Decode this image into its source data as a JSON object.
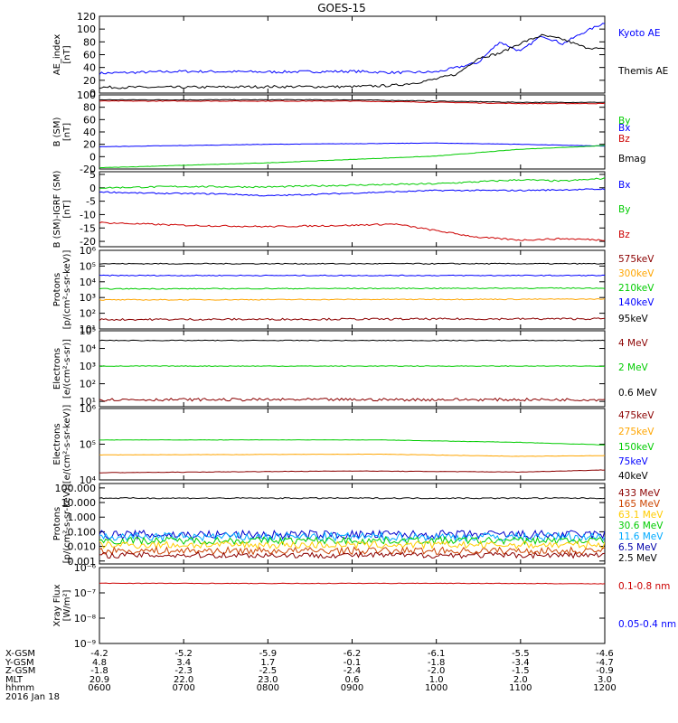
{
  "chart_data": {
    "type": "line",
    "title": "GOES-15",
    "x_ticks": [
      "0600",
      "0700",
      "0800",
      "0900",
      "1000",
      "1100",
      "1200"
    ],
    "panels": [
      {
        "name": "ae-index",
        "ylabel": [
          "AE_index",
          "[nT]"
        ],
        "scale": "linear",
        "ylim": [
          0,
          120
        ],
        "ticks": [
          "0",
          "20",
          "40",
          "60",
          "80",
          "100",
          "120"
        ],
        "tick_values": [
          0,
          20,
          40,
          60,
          80,
          100,
          120
        ],
        "legend": [
          {
            "label": "Kyoto AE",
            "color": "#0000ff"
          },
          {
            "label": "Themis AE",
            "color": "#000000"
          }
        ],
        "series": [
          {
            "name": "Kyoto AE",
            "color": "#0000ff",
            "x": [
              0,
              60,
              120,
              180,
              210,
              240,
              255,
              270,
              285,
              300,
              315,
              330,
              345,
              360
            ],
            "y": [
              31,
              34,
              33,
              34,
              32,
              33,
              40,
              48,
              80,
              65,
              90,
              77,
              95,
              110
            ],
            "noise": 2
          },
          {
            "name": "Themis AE",
            "color": "#000000",
            "x": [
              0,
              60,
              120,
              180,
              210,
              225,
              240,
              255,
              270,
              285,
              300,
              315,
              330,
              345,
              360
            ],
            "y": [
              9,
              9,
              10,
              10,
              12,
              16,
              22,
              30,
              55,
              62,
              78,
              90,
              84,
              72,
              68
            ],
            "noise": 2
          }
        ]
      },
      {
        "name": "b-sm",
        "ylabel": [
          "B (SM)",
          "[nT]"
        ],
        "scale": "linear",
        "ylim": [
          -20,
          100
        ],
        "ticks": [
          "-20",
          "0",
          "20",
          "40",
          "60",
          "80",
          "100"
        ],
        "tick_values": [
          -20,
          0,
          20,
          40,
          60,
          80,
          100
        ],
        "legend": [
          {
            "label": "Bx",
            "color": "#0000ff"
          },
          {
            "label": "By",
            "color": "#00cc00"
          },
          {
            "label": "Bz",
            "color": "#cc0000"
          },
          {
            "label": "Bmag",
            "color": "#000000"
          }
        ],
        "series": [
          {
            "name": "Bmag",
            "color": "#000000",
            "x": [
              0,
              180,
              240,
              300,
              360
            ],
            "y": [
              92,
              92,
              90,
              88,
              88
            ],
            "noise": 0.5
          },
          {
            "name": "Bz",
            "color": "#cc0000",
            "x": [
              0,
              180,
              240,
              300,
              360
            ],
            "y": [
              90,
              90,
              88,
              86,
              86
            ],
            "noise": 0.5
          },
          {
            "name": "Bx",
            "color": "#0000ff",
            "x": [
              0,
              120,
              240,
              300,
              360
            ],
            "y": [
              16,
              20,
              22,
              20,
              17
            ],
            "noise": 0.3
          },
          {
            "name": "By",
            "color": "#00cc00",
            "x": [
              0,
              120,
              240,
              300,
              360
            ],
            "y": [
              -18,
              -10,
              1,
              12,
              18
            ],
            "noise": 0.3
          }
        ]
      },
      {
        "name": "b-igrf",
        "ylabel": [
          "B (SM)-IGRF (SM)",
          "[nT]"
        ],
        "scale": "linear",
        "ylim": [
          -22,
          6
        ],
        "ticks": [
          "-20",
          "-15",
          "-10",
          "-5",
          "0",
          "5"
        ],
        "tick_values": [
          -20,
          -15,
          -10,
          -5,
          0,
          5
        ],
        "legend": [
          {
            "label": "Bx",
            "color": "#0000ff"
          },
          {
            "label": "By",
            "color": "#00cc00"
          },
          {
            "label": "Bz",
            "color": "#cc0000"
          }
        ],
        "series": [
          {
            "name": "By",
            "color": "#00cc00",
            "x": [
              0,
              60,
              120,
              180,
              240,
              300,
              330,
              360
            ],
            "y": [
              0,
              0.5,
              0.3,
              1,
              1.5,
              3,
              2.5,
              3.5
            ],
            "noise": 0.3
          },
          {
            "name": "Bx",
            "color": "#0000ff",
            "x": [
              0,
              30,
              90,
              120,
              180,
              240,
              300,
              360
            ],
            "y": [
              -1.5,
              -2,
              -2.3,
              -3,
              -2,
              -1,
              -1,
              -0.5
            ],
            "noise": 0.25
          },
          {
            "name": "Bz",
            "color": "#cc0000",
            "x": [
              0,
              60,
              120,
              180,
              210,
              240,
              270,
              300,
              330,
              360
            ],
            "y": [
              -13,
              -14,
              -14.5,
              -14,
              -13.5,
              -16,
              -18.5,
              -19.5,
              -19,
              -19.5
            ],
            "noise": 0.3
          }
        ]
      },
      {
        "name": "protons-maged",
        "ylabel": [
          "Protons",
          "[p/(cm²-s-sr-keV)]"
        ],
        "scale": "log",
        "ylim": [
          1,
          6
        ],
        "ticks": [
          "10¹",
          "10²",
          "10³",
          "10⁴",
          "10⁵",
          "10⁶"
        ],
        "tick_values": [
          1,
          2,
          3,
          4,
          5,
          6
        ],
        "legend": [
          {
            "label": "575keV",
            "color": "#8b0000"
          },
          {
            "label": "300keV",
            "color": "#ffa500"
          },
          {
            "label": "210keV",
            "color": "#00cc00"
          },
          {
            "label": "140keV",
            "color": "#0000ff"
          },
          {
            "label": "95keV",
            "color": "#000000"
          }
        ],
        "series": [
          {
            "name": "95keV",
            "color": "#000000",
            "x": [
              0,
              360
            ],
            "y": [
              5.15,
              5.15
            ],
            "noise": 0.03
          },
          {
            "name": "140keV",
            "color": "#0000ff",
            "x": [
              0,
              360
            ],
            "y": [
              4.4,
              4.4
            ],
            "noise": 0.03
          },
          {
            "name": "210keV",
            "color": "#00cc00",
            "x": [
              0,
              360
            ],
            "y": [
              3.55,
              3.6
            ],
            "noise": 0.03
          },
          {
            "name": "300keV",
            "color": "#ffa500",
            "x": [
              0,
              360
            ],
            "y": [
              2.85,
              2.9
            ],
            "noise": 0.03
          },
          {
            "name": "575keV",
            "color": "#8b0000",
            "x": [
              0,
              360
            ],
            "y": [
              1.6,
              1.65
            ],
            "noise": 0.06
          }
        ]
      },
      {
        "name": "electrons-epead",
        "ylabel": [
          "Electrons",
          "[e/(cm²-s-sr)]"
        ],
        "scale": "log",
        "ylim": [
          0.7,
          5
        ],
        "ticks": [
          "10¹",
          "10²",
          "10³",
          "10⁴",
          "10⁵"
        ],
        "tick_values": [
          1,
          2,
          3,
          4,
          5
        ],
        "legend": [
          {
            "label": "4 MeV",
            "color": "#8b0000"
          },
          {
            "label": "2 MeV",
            "color": "#00cc00"
          },
          {
            "label": "0.6 MeV",
            "color": "#000000"
          }
        ],
        "series": [
          {
            "name": "0.6 MeV",
            "color": "#000000",
            "x": [
              0,
              360
            ],
            "y": [
              4.45,
              4.45
            ],
            "noise": 0.02
          },
          {
            "name": "2 MeV",
            "color": "#00cc00",
            "x": [
              0,
              360
            ],
            "y": [
              3.0,
              3.0
            ],
            "noise": 0.02
          },
          {
            "name": "4 MeV",
            "color": "#8b0000",
            "x": [
              0,
              360
            ],
            "y": [
              1.1,
              1.1
            ],
            "noise": 0.08
          }
        ]
      },
      {
        "name": "electrons-maged",
        "ylabel": [
          "Electrons",
          "[e/(cm²-s-sr-keV)]"
        ],
        "scale": "log",
        "ylim": [
          4,
          6
        ],
        "ticks": [
          "10⁴",
          "10⁵",
          "10⁶"
        ],
        "tick_values": [
          4,
          5,
          6
        ],
        "legend": [
          {
            "label": "475keV",
            "color": "#8b0000"
          },
          {
            "label": "275keV",
            "color": "#ffa500"
          },
          {
            "label": "150keV",
            "color": "#00cc00"
          },
          {
            "label": "75keV",
            "color": "#0000ff"
          },
          {
            "label": "40keV",
            "color": "#000000"
          }
        ],
        "series": [
          {
            "name": "150keV",
            "color": "#00cc00",
            "x": [
              0,
              200,
              300,
              360
            ],
            "y": [
              5.12,
              5.12,
              5.05,
              4.98
            ],
            "noise": 0.005
          },
          {
            "name": "275keV",
            "color": "#ffa500",
            "x": [
              0,
              200,
              300,
              360
            ],
            "y": [
              4.7,
              4.72,
              4.66,
              4.68
            ],
            "noise": 0.005
          },
          {
            "name": "475keV",
            "color": "#8b0000",
            "x": [
              0,
              180,
              300,
              360
            ],
            "y": [
              4.2,
              4.25,
              4.22,
              4.28
            ],
            "noise": 0.006
          }
        ]
      },
      {
        "name": "protons-epead",
        "ylabel": [
          "Protons",
          "[p/(cm²-s-sr-keV)]"
        ],
        "scale": "log",
        "ylim": [
          -3.2,
          2.3
        ],
        "ticks": [
          "0.001",
          "0.010",
          "0.100",
          "1.000",
          "10.000",
          "100.000"
        ],
        "tick_values": [
          -3,
          -2,
          -1,
          0,
          1,
          2
        ],
        "legend": [
          {
            "label": "433 MeV",
            "color": "#8b0000"
          },
          {
            "label": "165 MeV",
            "color": "#cc4400"
          },
          {
            "label": "63.1 MeV",
            "color": "#ffcc00"
          },
          {
            "label": "30.6 MeV",
            "color": "#00cc00"
          },
          {
            "label": "11.6 MeV",
            "color": "#00aaff"
          },
          {
            "label": "6.5 MeV",
            "color": "#0000aa"
          },
          {
            "label": "2.5 MeV",
            "color": "#000000"
          }
        ],
        "series": [
          {
            "name": "2.5 MeV",
            "color": "#000000",
            "x": [
              0,
              360
            ],
            "y": [
              1.3,
              1.3
            ],
            "noise": 0.04
          },
          {
            "name": "6.5 MeV",
            "color": "#0000cc",
            "x": [
              0,
              360
            ],
            "y": [
              -1.2,
              -1.2
            ],
            "noise": 0.3
          },
          {
            "name": "11.6 MeV",
            "color": "#00aaff",
            "x": [
              0,
              360
            ],
            "y": [
              -1.35,
              -1.35
            ],
            "noise": 0.3
          },
          {
            "name": "30.6 MeV",
            "color": "#00cc00",
            "x": [
              0,
              360
            ],
            "y": [
              -1.6,
              -1.6
            ],
            "noise": 0.25
          },
          {
            "name": "63.1 MeV",
            "color": "#ffcc00",
            "x": [
              0,
              360
            ],
            "y": [
              -1.9,
              -1.9
            ],
            "noise": 0.25
          },
          {
            "name": "165 MeV",
            "color": "#cc4400",
            "x": [
              0,
              360
            ],
            "y": [
              -2.3,
              -2.3
            ],
            "noise": 0.25
          },
          {
            "name": "433 MeV",
            "color": "#8b0000",
            "x": [
              0,
              360
            ],
            "y": [
              -2.6,
              -2.6
            ],
            "noise": 0.2
          }
        ]
      },
      {
        "name": "xray-flux",
        "ylabel": [
          "Xray Flux",
          "[W/m²]"
        ],
        "scale": "log",
        "ylim": [
          -9,
          -6
        ],
        "ticks": [
          "10⁻⁹",
          "10⁻⁸",
          "10⁻⁷",
          "10⁻⁶"
        ],
        "tick_values": [
          -9,
          -8,
          -7,
          -6
        ],
        "legend": [
          {
            "label": "0.1-0.8 nm",
            "color": "#cc0000"
          },
          {
            "label": "0.05-0.4 nm",
            "color": "#0000ff"
          }
        ],
        "series": [
          {
            "name": "0.1-0.8 nm",
            "color": "#cc0000",
            "x": [
              0,
              120,
              240,
              360
            ],
            "y": [
              -6.62,
              -6.63,
              -6.62,
              -6.64
            ],
            "noise": 0.01
          }
        ]
      }
    ]
  },
  "ephemeris": {
    "rows": [
      {
        "label": "X-GSM",
        "values": [
          "-4.2",
          "-5.2",
          "-5.9",
          "-6.2",
          "-6.1",
          "-5.5",
          "-4.6"
        ]
      },
      {
        "label": "Y-GSM",
        "values": [
          "4.8",
          "3.4",
          "1.7",
          "-0.1",
          "-1.8",
          "-3.4",
          "-4.7"
        ]
      },
      {
        "label": "Z-GSM",
        "values": [
          "-1.8",
          "-2.3",
          "-2.5",
          "-2.4",
          "-2.0",
          "-1.5",
          "-0.9"
        ]
      },
      {
        "label": "MLT",
        "values": [
          "20.9",
          "22.0",
          "23.0",
          "0.6",
          "1.0",
          "2.0",
          "3.0"
        ]
      },
      {
        "label": "hhmm",
        "values": [
          "0600",
          "0700",
          "0800",
          "0900",
          "1000",
          "1100",
          "1200"
        ]
      }
    ],
    "date": "2016 Jan 18"
  }
}
